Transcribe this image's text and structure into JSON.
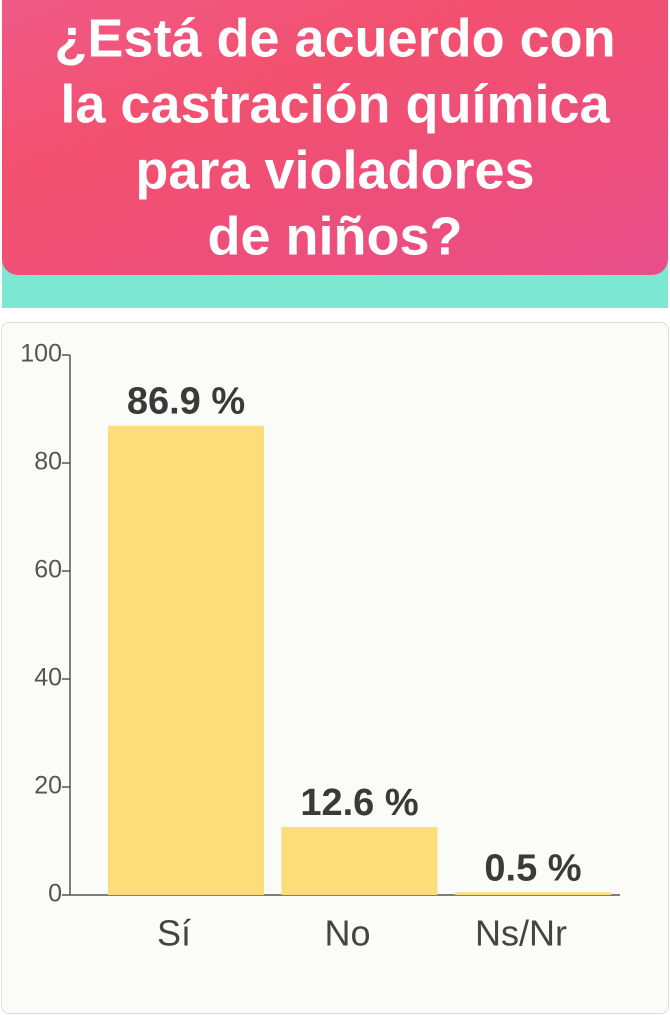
{
  "chart_data": {
    "type": "bar",
    "title": [
      "¿Está de acuerdo con",
      "la castración química",
      "para violadores",
      "de niños?"
    ],
    "categories": [
      "Sí",
      "No",
      "Ns/Nr"
    ],
    "values": [
      86.9,
      12.6,
      0.5
    ],
    "value_labels": [
      "86.9 %",
      "12.6 %",
      "0.5 %"
    ],
    "color": "#fddd7a",
    "ylim": [
      0,
      100
    ],
    "yticks": [
      0,
      20,
      40,
      60,
      80,
      100
    ]
  }
}
